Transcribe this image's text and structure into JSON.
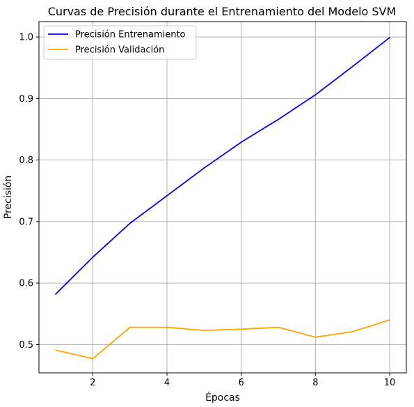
{
  "chart_data": {
    "type": "line",
    "title": "Curvas de Precisión durante el Entrenamiento del Modelo SVM",
    "xlabel": "Épocas",
    "ylabel": "Precisión",
    "x": [
      1,
      2,
      3,
      4,
      5,
      6,
      7,
      8,
      9,
      10
    ],
    "xlim": [
      0.55,
      10.45
    ],
    "ylim": [
      0.454,
      1.025
    ],
    "xticks": [
      2,
      4,
      6,
      8,
      10
    ],
    "yticks": [
      0.5,
      0.6,
      0.7,
      0.8,
      0.9,
      1.0
    ],
    "xtick_labels": [
      "2",
      "4",
      "6",
      "8",
      "10"
    ],
    "ytick_labels": [
      "0.5",
      "0.6",
      "0.7",
      "0.8",
      "0.9",
      "1.0"
    ],
    "grid": true,
    "legend_position": "top-left",
    "series": [
      {
        "name": "Precisión Entrenamiento",
        "color": "#0000ff",
        "values": [
          0.582,
          0.642,
          0.697,
          0.742,
          0.787,
          0.829,
          0.866,
          0.906,
          0.952,
          0.999
        ]
      },
      {
        "name": "Precisión Validación",
        "color": "#ffa500",
        "values": [
          0.491,
          0.477,
          0.528,
          0.528,
          0.523,
          0.525,
          0.528,
          0.512,
          0.521,
          0.54
        ]
      }
    ]
  }
}
